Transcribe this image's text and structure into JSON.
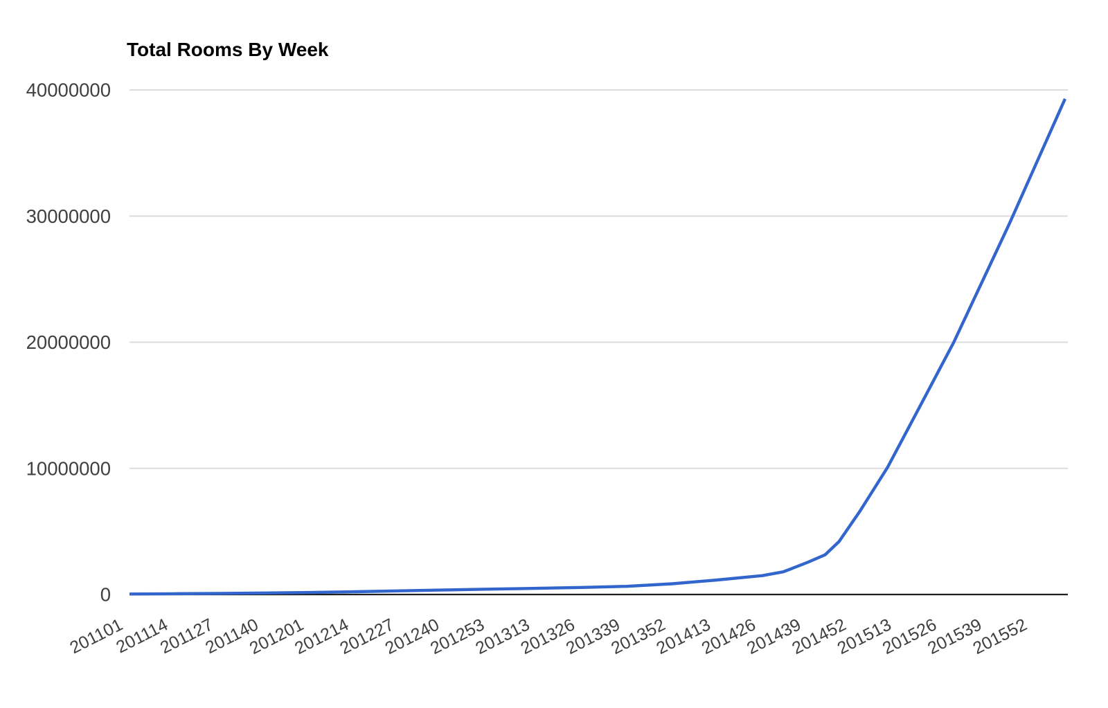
{
  "title": "Total Rooms By Week",
  "chart_data": {
    "type": "line",
    "title": "Total Rooms By Week",
    "legend": "none",
    "grid": "horizontal",
    "x_axis": {
      "labels": [
        "201101",
        "201114",
        "201127",
        "201140",
        "201201",
        "201214",
        "201227",
        "201240",
        "201253",
        "201313",
        "201326",
        "201339",
        "201352",
        "201413",
        "201426",
        "201439",
        "201452",
        "201513",
        "201526",
        "201539",
        "201552"
      ],
      "label_step_weeks": 13,
      "total_week_span": 269,
      "rotation_deg": -27
    },
    "y_axis": {
      "ticks": [
        0,
        10000000,
        20000000,
        30000000,
        40000000
      ],
      "tick_labels": [
        "0",
        "10000000",
        "20000000",
        "30000000",
        "40000000"
      ],
      "range": [
        0,
        40000000
      ]
    },
    "series": [
      {
        "name": "Total Rooms",
        "color": "#3366cc",
        "values_at_labels": [
          40000,
          60000,
          90000,
          120000,
          160000,
          220000,
          290000,
          360000,
          430000,
          490000,
          560000,
          650000,
          850000,
          1150000,
          1500000,
          2550000,
          5800000,
          11700000,
          18400000,
          25900000,
          33700000
        ],
        "shape_points": [
          [
            0,
            40000
          ],
          [
            13,
            60000
          ],
          [
            26,
            90000
          ],
          [
            39,
            120000
          ],
          [
            52,
            160000
          ],
          [
            65,
            220000
          ],
          [
            78,
            290000
          ],
          [
            91,
            360000
          ],
          [
            104,
            430000
          ],
          [
            117,
            490000
          ],
          [
            130,
            560000
          ],
          [
            143,
            650000
          ],
          [
            156,
            850000
          ],
          [
            169,
            1150000
          ],
          [
            182,
            1500000
          ],
          [
            188,
            1800000
          ],
          [
            195,
            2550000
          ],
          [
            200,
            3150000
          ],
          [
            204,
            4200000
          ],
          [
            210,
            6600000
          ],
          [
            218,
            10100000
          ],
          [
            228,
            15300000
          ],
          [
            237,
            20000000
          ],
          [
            253,
            29400000
          ],
          [
            269,
            39300000
          ]
        ]
      }
    ]
  },
  "style": {
    "background": "#ffffff",
    "title_color": "#000000",
    "axis_text_color": "#404040",
    "gridline_color": "#dcdcdc",
    "baseline_color": "#1f1f1f"
  }
}
